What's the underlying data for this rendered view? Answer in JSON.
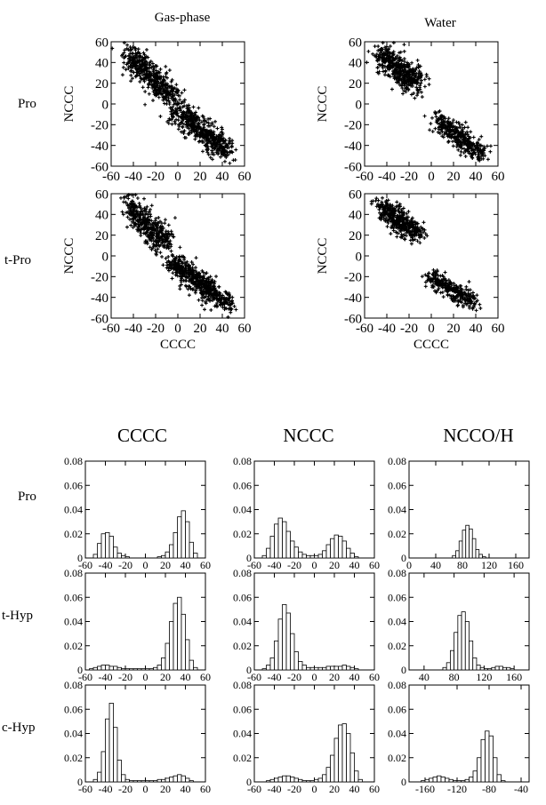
{
  "scatter_panel": {
    "column_titles": [
      "Gas-phase",
      "Water"
    ],
    "row_labels": [
      "Pro",
      "t-Pro"
    ],
    "xlabel": "CCCC",
    "ylabel": "NCCC"
  },
  "histogram_panel": {
    "column_titles": [
      "CCCC",
      "NCCC",
      "NCCO/H"
    ],
    "row_labels": [
      "Pro",
      "t-Hyp",
      "c-Hyp"
    ]
  },
  "chart_data": [
    {
      "type": "scatter",
      "id": "scatter-gas-pro",
      "xlabel": "",
      "ylabel": "NCCC",
      "xlim": [
        -60,
        60
      ],
      "ylim": [
        -60,
        60
      ],
      "x_ticks": [
        -60,
        -40,
        -20,
        0,
        20,
        40,
        60
      ],
      "y_ticks": [
        60,
        40,
        20,
        0,
        -20,
        -40,
        -60
      ],
      "marker": "+",
      "clusters": [
        {
          "from": [
            -45,
            50
          ],
          "to": [
            -5,
            5
          ],
          "spread": 8,
          "n": 450
        },
        {
          "from": [
            0,
            -5
          ],
          "to": [
            45,
            -48
          ],
          "spread": 8,
          "n": 500
        }
      ]
    },
    {
      "type": "scatter",
      "id": "scatter-water-pro",
      "xlabel": "",
      "ylabel": "NCCC",
      "xlim": [
        -60,
        60
      ],
      "ylim": [
        -60,
        60
      ],
      "x_ticks": [
        -60,
        -40,
        -20,
        0,
        20,
        40,
        60
      ],
      "y_ticks": [
        60,
        40,
        20,
        0,
        -20,
        -40,
        -60
      ],
      "marker": "+",
      "clusters": [
        {
          "from": [
            -45,
            48
          ],
          "to": [
            -12,
            18
          ],
          "spread": 8,
          "n": 450
        },
        {
          "from": [
            5,
            -15
          ],
          "to": [
            45,
            -48
          ],
          "spread": 7,
          "n": 350
        }
      ]
    },
    {
      "type": "scatter",
      "id": "scatter-gas-tpro",
      "xlabel": "CCCC",
      "ylabel": "NCCC",
      "xlim": [
        -60,
        60
      ],
      "ylim": [
        -60,
        60
      ],
      "x_ticks": [
        -60,
        -40,
        -20,
        0,
        20,
        40,
        60
      ],
      "y_ticks": [
        60,
        40,
        20,
        0,
        -20,
        -40,
        -60
      ],
      "marker": "+",
      "clusters": [
        {
          "from": [
            -45,
            50
          ],
          "to": [
            -10,
            10
          ],
          "spread": 8,
          "n": 400
        },
        {
          "from": [
            -5,
            -5
          ],
          "to": [
            45,
            -48
          ],
          "spread": 7,
          "n": 550
        }
      ]
    },
    {
      "type": "scatter",
      "id": "scatter-water-tpro",
      "xlabel": "CCCC",
      "ylabel": "NCCC",
      "xlim": [
        -60,
        60
      ],
      "ylim": [
        -60,
        60
      ],
      "x_ticks": [
        -60,
        -40,
        -20,
        0,
        20,
        40,
        60
      ],
      "y_ticks": [
        60,
        40,
        20,
        0,
        -20,
        -40,
        -60
      ],
      "marker": "+",
      "clusters": [
        {
          "from": [
            -45,
            48
          ],
          "to": [
            -12,
            20
          ],
          "spread": 7,
          "n": 420
        },
        {
          "from": [
            0,
            -20
          ],
          "to": [
            38,
            -45
          ],
          "spread": 6,
          "n": 300
        }
      ]
    },
    {
      "type": "bar",
      "id": "hist-cccc-pro",
      "xlim": [
        -60,
        60
      ],
      "ylim": [
        0,
        0.08
      ],
      "x_ticks": [
        -60,
        -40,
        -20,
        0,
        20,
        40,
        60
      ],
      "y_ticks": [
        0,
        0.02,
        0.04,
        0.06,
        0.08
      ],
      "bin_width": 4,
      "x": [
        -50,
        -46,
        -42,
        -38,
        -34,
        -30,
        -26,
        -22,
        -18,
        14,
        18,
        22,
        26,
        30,
        34,
        38,
        42,
        46,
        50
      ],
      "values": [
        0.003,
        0.012,
        0.02,
        0.021,
        0.018,
        0.009,
        0.004,
        0.002,
        0.001,
        0.001,
        0.002,
        0.005,
        0.011,
        0.021,
        0.034,
        0.039,
        0.03,
        0.013,
        0.004
      ]
    },
    {
      "type": "bar",
      "id": "hist-nccc-pro",
      "xlim": [
        -60,
        60
      ],
      "ylim": [
        0,
        0.08
      ],
      "x_ticks": [
        -60,
        -40,
        -20,
        0,
        20,
        40,
        60
      ],
      "y_ticks": [
        0,
        0.02,
        0.04,
        0.06,
        0.08
      ],
      "bin_width": 4,
      "x": [
        -50,
        -46,
        -42,
        -38,
        -34,
        -30,
        -26,
        -22,
        -18,
        -14,
        -10,
        -6,
        -2,
        2,
        6,
        10,
        14,
        18,
        22,
        26,
        30,
        34,
        38,
        42
      ],
      "values": [
        0.002,
        0.008,
        0.018,
        0.028,
        0.033,
        0.03,
        0.022,
        0.014,
        0.009,
        0.005,
        0.003,
        0.002,
        0.002,
        0.002,
        0.003,
        0.006,
        0.011,
        0.016,
        0.019,
        0.018,
        0.014,
        0.008,
        0.004,
        0.001
      ]
    },
    {
      "type": "bar",
      "id": "hist-ncco-pro",
      "xlim": [
        0,
        180
      ],
      "ylim": [
        0,
        0.08
      ],
      "x_ticks": [
        0,
        40,
        80,
        120,
        160
      ],
      "y_ticks": [
        0,
        0.02,
        0.04,
        0.06,
        0.08
      ],
      "bin_width": 5,
      "x": [
        67.5,
        72.5,
        77.5,
        82.5,
        87.5,
        92.5,
        97.5,
        102.5,
        107.5,
        112.5
      ],
      "values": [
        0.002,
        0.006,
        0.014,
        0.023,
        0.027,
        0.024,
        0.016,
        0.007,
        0.003,
        0.001
      ]
    },
    {
      "type": "bar",
      "id": "hist-cccc-thyp",
      "xlim": [
        -60,
        60
      ],
      "ylim": [
        0,
        0.08
      ],
      "x_ticks": [
        -60,
        -40,
        -20,
        0,
        20,
        40,
        60
      ],
      "y_ticks": [
        0,
        0.02,
        0.04,
        0.06,
        0.08
      ],
      "bin_width": 4,
      "x": [
        -54,
        -50,
        -46,
        -42,
        -38,
        -34,
        -30,
        -26,
        -22,
        -18,
        -14,
        -10,
        -6,
        -2,
        2,
        6,
        10,
        14,
        18,
        22,
        26,
        30,
        34,
        38,
        42,
        46,
        50
      ],
      "values": [
        0.001,
        0.002,
        0.003,
        0.004,
        0.004,
        0.003,
        0.003,
        0.002,
        0.001,
        0.001,
        0.001,
        0.001,
        0.001,
        0.001,
        0.001,
        0.001,
        0.002,
        0.004,
        0.01,
        0.022,
        0.04,
        0.055,
        0.06,
        0.046,
        0.025,
        0.008,
        0.002
      ]
    },
    {
      "type": "bar",
      "id": "hist-nccc-thyp",
      "xlim": [
        -60,
        60
      ],
      "ylim": [
        0,
        0.08
      ],
      "x_ticks": [
        -60,
        -40,
        -20,
        0,
        20,
        40,
        60
      ],
      "y_ticks": [
        0,
        0.02,
        0.04,
        0.06,
        0.08
      ],
      "bin_width": 4,
      "x": [
        -50,
        -46,
        -42,
        -38,
        -34,
        -30,
        -26,
        -22,
        -18,
        -14,
        -10,
        -6,
        -2,
        2,
        6,
        10,
        14,
        18,
        22,
        26,
        30,
        34,
        38,
        42
      ],
      "values": [
        0.001,
        0.004,
        0.01,
        0.024,
        0.042,
        0.054,
        0.047,
        0.03,
        0.015,
        0.007,
        0.004,
        0.002,
        0.002,
        0.002,
        0.002,
        0.002,
        0.003,
        0.003,
        0.003,
        0.003,
        0.004,
        0.003,
        0.002,
        0.001
      ]
    },
    {
      "type": "bar",
      "id": "hist-ncco-thyp",
      "xlim": [
        20,
        180
      ],
      "ylim": [
        0,
        0.08
      ],
      "x_ticks": [
        40,
        80,
        120,
        160
      ],
      "y_ticks": [
        0,
        0.02,
        0.04,
        0.06,
        0.08
      ],
      "bin_width": 5,
      "x": [
        67.5,
        72.5,
        77.5,
        82.5,
        87.5,
        92.5,
        97.5,
        102.5,
        107.5,
        112.5,
        117.5,
        122.5,
        127.5,
        132.5,
        137.5,
        142.5,
        147.5,
        152.5,
        157.5
      ],
      "values": [
        0.002,
        0.006,
        0.016,
        0.031,
        0.045,
        0.048,
        0.04,
        0.024,
        0.01,
        0.004,
        0.002,
        0.001,
        0.001,
        0.002,
        0.003,
        0.003,
        0.002,
        0.002,
        0.001
      ]
    },
    {
      "type": "bar",
      "id": "hist-cccc-chyp",
      "xlim": [
        -60,
        60
      ],
      "ylim": [
        0,
        0.08
      ],
      "x_ticks": [
        -60,
        -40,
        -20,
        0,
        20,
        40,
        60
      ],
      "y_ticks": [
        0,
        0.02,
        0.04,
        0.06,
        0.08
      ],
      "bin_width": 4,
      "x": [
        -50,
        -46,
        -42,
        -38,
        -34,
        -30,
        -26,
        -22,
        -18,
        -14,
        -10,
        -6,
        -2,
        2,
        6,
        10,
        14,
        18,
        22,
        26,
        30,
        34,
        38,
        42,
        46
      ],
      "values": [
        0.002,
        0.008,
        0.025,
        0.052,
        0.065,
        0.045,
        0.018,
        0.006,
        0.002,
        0.001,
        0.001,
        0.001,
        0.001,
        0.001,
        0.001,
        0.001,
        0.002,
        0.002,
        0.003,
        0.004,
        0.005,
        0.006,
        0.005,
        0.003,
        0.001
      ]
    },
    {
      "type": "bar",
      "id": "hist-nccc-chyp",
      "xlim": [
        -60,
        60
      ],
      "ylim": [
        0,
        0.08
      ],
      "x_ticks": [
        -60,
        -40,
        -20,
        0,
        20,
        40,
        60
      ],
      "y_ticks": [
        0,
        0.02,
        0.04,
        0.06,
        0.08
      ],
      "bin_width": 4,
      "x": [
        -46,
        -42,
        -38,
        -34,
        -30,
        -26,
        -22,
        -18,
        -14,
        -10,
        -6,
        -2,
        2,
        6,
        10,
        14,
        18,
        22,
        26,
        30,
        34,
        38,
        42,
        46
      ],
      "values": [
        0.001,
        0.002,
        0.003,
        0.004,
        0.005,
        0.005,
        0.004,
        0.003,
        0.002,
        0.001,
        0.001,
        0.001,
        0.002,
        0.003,
        0.006,
        0.012,
        0.022,
        0.036,
        0.047,
        0.048,
        0.04,
        0.024,
        0.009,
        0.002
      ]
    },
    {
      "type": "bar",
      "id": "hist-ncco-chyp",
      "xlim": [
        -180,
        -30
      ],
      "ylim": [
        0,
        0.08
      ],
      "x_ticks": [
        -160,
        -120,
        -80,
        -40
      ],
      "y_ticks": [
        0,
        0.02,
        0.04,
        0.06,
        0.08
      ],
      "bin_width": 5,
      "x": [
        -162.5,
        -157.5,
        -152.5,
        -147.5,
        -142.5,
        -137.5,
        -132.5,
        -127.5,
        -122.5,
        -117.5,
        -112.5,
        -107.5,
        -102.5,
        -97.5,
        -92.5,
        -87.5,
        -82.5,
        -77.5,
        -72.5,
        -67.5,
        -62.5
      ],
      "values": [
        0.001,
        0.002,
        0.003,
        0.004,
        0.005,
        0.004,
        0.003,
        0.002,
        0.001,
        0.001,
        0.001,
        0.002,
        0.004,
        0.009,
        0.02,
        0.035,
        0.042,
        0.038,
        0.02,
        0.006,
        0.001
      ]
    }
  ]
}
